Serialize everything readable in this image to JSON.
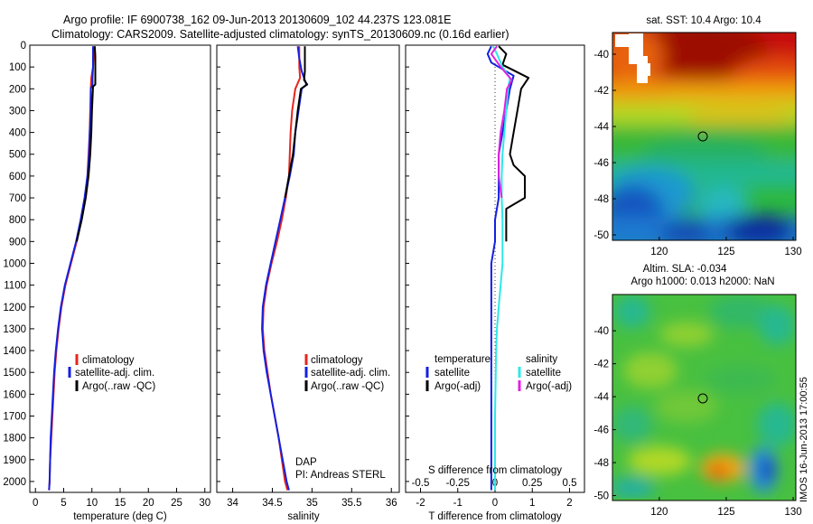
{
  "header": {
    "line1": "Argo profile: IF 6900738_162 09-Jun-2013 20130609_102 44.237S 123.081E",
    "line2": "Climatology: CARS2009. Satellite-adjusted climatology: synTS_20130609.nc (0.16d earlier)"
  },
  "colors": {
    "climatology": "#e8251c",
    "satellite": "#1420e0",
    "argo": "#000000",
    "satellite_s": "#2de8e8",
    "argo_s": "#e020e0"
  },
  "chart_data": [
    {
      "type": "line",
      "id": "temperature",
      "xlabel": "temperature (deg C)",
      "xlim": [
        -1,
        31
      ],
      "ylim": [
        0,
        2050
      ],
      "xticks": [
        0,
        5,
        10,
        15,
        20,
        25,
        30
      ],
      "yticks": [
        0,
        100,
        200,
        300,
        400,
        500,
        600,
        700,
        800,
        900,
        1000,
        1100,
        1200,
        1300,
        1400,
        1500,
        1600,
        1700,
        1800,
        1900,
        2000
      ],
      "y_reversed": true,
      "legend": [
        "climatology",
        "satellite-adj. clim.",
        "Argo(..raw -QC)"
      ],
      "legend_position": "lower-center",
      "series": [
        {
          "name": "climatology",
          "color_key": "climatology",
          "points": [
            [
              10.3,
              5
            ],
            [
              10.3,
              50
            ],
            [
              10.2,
              100
            ],
            [
              9.9,
              150
            ],
            [
              9.8,
              200
            ],
            [
              9.7,
              300
            ],
            [
              9.6,
              400
            ],
            [
              9.4,
              500
            ],
            [
              9.2,
              600
            ],
            [
              8.8,
              700
            ],
            [
              8.1,
              800
            ],
            [
              7.3,
              900
            ],
            [
              6.3,
              1000
            ],
            [
              5.3,
              1100
            ],
            [
              4.6,
              1200
            ],
            [
              4.1,
              1300
            ],
            [
              3.7,
              1400
            ],
            [
              3.4,
              1500
            ],
            [
              3.2,
              1600
            ],
            [
              3.0,
              1700
            ],
            [
              2.8,
              1800
            ],
            [
              2.6,
              1900
            ],
            [
              2.5,
              2000
            ],
            [
              2.4,
              2040
            ]
          ]
        },
        {
          "name": "satellite-adj. clim.",
          "color_key": "satellite",
          "points": [
            [
              10.2,
              5
            ],
            [
              10.2,
              50
            ],
            [
              10.2,
              100
            ],
            [
              10.1,
              150
            ],
            [
              10.1,
              180
            ],
            [
              9.8,
              200
            ],
            [
              9.8,
              300
            ],
            [
              9.6,
              400
            ],
            [
              9.5,
              500
            ],
            [
              9.2,
              600
            ],
            [
              8.7,
              700
            ],
            [
              8.0,
              800
            ],
            [
              7.2,
              900
            ],
            [
              6.2,
              1000
            ],
            [
              5.2,
              1100
            ],
            [
              4.5,
              1200
            ],
            [
              4.0,
              1300
            ],
            [
              3.6,
              1400
            ],
            [
              3.3,
              1500
            ],
            [
              3.1,
              1600
            ],
            [
              2.9,
              1700
            ],
            [
              2.7,
              1800
            ],
            [
              2.6,
              1900
            ],
            [
              2.5,
              2000
            ],
            [
              2.4,
              2040
            ]
          ]
        },
        {
          "name": "Argo(..raw -QC)",
          "color_key": "argo",
          "points": [
            [
              10.5,
              5
            ],
            [
              10.6,
              50
            ],
            [
              10.6,
              100
            ],
            [
              10.6,
              150
            ],
            [
              10.6,
              180
            ],
            [
              10.2,
              190
            ],
            [
              10.0,
              300
            ],
            [
              9.9,
              400
            ],
            [
              9.7,
              500
            ],
            [
              9.4,
              600
            ],
            [
              8.9,
              700
            ],
            [
              8.2,
              800
            ],
            [
              7.3,
              900
            ]
          ]
        }
      ]
    },
    {
      "type": "line",
      "id": "salinity",
      "xlabel": "salinity",
      "xlim": [
        33.8,
        36.1
      ],
      "ylim": [
        0,
        2050
      ],
      "xticks": [
        34,
        34.5,
        35,
        35.5,
        36
      ],
      "y_reversed": true,
      "legend": [
        "climatology",
        "satellite-adj. clim.",
        "Argo(..raw -QC)"
      ],
      "legend_position": "lower-right",
      "annotation": [
        "DAP",
        "PI: Andreas STERL"
      ],
      "series": [
        {
          "name": "climatology",
          "color_key": "climatology",
          "points": [
            [
              34.84,
              5
            ],
            [
              34.84,
              100
            ],
            [
              34.85,
              150
            ],
            [
              34.79,
              200
            ],
            [
              34.75,
              300
            ],
            [
              34.73,
              400
            ],
            [
              34.72,
              500
            ],
            [
              34.71,
              600
            ],
            [
              34.67,
              700
            ],
            [
              34.62,
              800
            ],
            [
              34.56,
              900
            ],
            [
              34.49,
              1000
            ],
            [
              34.43,
              1100
            ],
            [
              34.39,
              1200
            ],
            [
              34.38,
              1300
            ],
            [
              34.4,
              1400
            ],
            [
              34.44,
              1500
            ],
            [
              34.48,
              1600
            ],
            [
              34.53,
              1700
            ],
            [
              34.58,
              1800
            ],
            [
              34.62,
              1900
            ],
            [
              34.66,
              2000
            ],
            [
              34.69,
              2040
            ]
          ]
        },
        {
          "name": "satellite-adj. clim.",
          "color_key": "satellite",
          "points": [
            [
              34.82,
              5
            ],
            [
              34.84,
              60
            ],
            [
              34.87,
              120
            ],
            [
              34.93,
              180
            ],
            [
              34.87,
              200
            ],
            [
              34.83,
              300
            ],
            [
              34.79,
              400
            ],
            [
              34.77,
              500
            ],
            [
              34.72,
              600
            ],
            [
              34.66,
              700
            ],
            [
              34.6,
              800
            ],
            [
              34.54,
              900
            ],
            [
              34.48,
              1000
            ],
            [
              34.42,
              1100
            ],
            [
              34.38,
              1200
            ],
            [
              34.37,
              1300
            ],
            [
              34.39,
              1400
            ],
            [
              34.43,
              1500
            ],
            [
              34.48,
              1600
            ],
            [
              34.53,
              1700
            ],
            [
              34.58,
              1800
            ],
            [
              34.63,
              1900
            ],
            [
              34.68,
              2000
            ],
            [
              34.71,
              2040
            ]
          ]
        },
        {
          "name": "Argo(..raw -QC)",
          "color_key": "argo",
          "points": [
            [
              34.91,
              5
            ],
            [
              34.91,
              120
            ],
            [
              34.9,
              160
            ],
            [
              34.94,
              180
            ],
            [
              34.86,
              200
            ],
            [
              34.82,
              300
            ],
            [
              34.79,
              400
            ],
            [
              34.76,
              500
            ],
            [
              34.71,
              600
            ],
            [
              34.66,
              700
            ]
          ]
        }
      ]
    },
    {
      "type": "line",
      "id": "differences",
      "xlabel": "T difference from climatology",
      "xlabel_top": "S difference from climatology",
      "xlim": [
        -2.4,
        2.4
      ],
      "ylim": [
        0,
        2050
      ],
      "xticks": [
        -2,
        -1,
        0,
        1,
        2
      ],
      "xticks_s": [
        -0.5,
        -0.25,
        0,
        0.25,
        0.5
      ],
      "s_scale_per_t": 0.25,
      "y_reversed": true,
      "legend_left": {
        "title": "temperature",
        "items": [
          "satellite",
          "Argo(-adj)"
        ]
      },
      "legend_right": {
        "title": "salinity",
        "items": [
          "satellite",
          "Argo(-adj)"
        ]
      },
      "series": [
        {
          "name": "satellite T",
          "color_key": "satellite",
          "points": [
            [
              -0.1,
              5
            ],
            [
              -0.2,
              40
            ],
            [
              -0.1,
              80
            ],
            [
              0.5,
              140
            ],
            [
              0.4,
              200
            ],
            [
              0.3,
              300
            ],
            [
              0.2,
              400
            ],
            [
              0.1,
              500
            ],
            [
              0.1,
              600
            ],
            [
              0.1,
              700
            ],
            [
              0.0,
              800
            ],
            [
              0.0,
              900
            ],
            [
              -0.1,
              1000
            ],
            [
              -0.1,
              1100
            ],
            [
              -0.1,
              1200
            ],
            [
              -0.1,
              1300
            ],
            [
              -0.1,
              1400
            ],
            [
              -0.1,
              1500
            ],
            [
              -0.1,
              1600
            ],
            [
              -0.1,
              1700
            ],
            [
              -0.1,
              1800
            ],
            [
              -0.1,
              1900
            ],
            [
              -0.1,
              2000
            ],
            [
              -0.1,
              2040
            ]
          ]
        },
        {
          "name": "Argo T",
          "color_key": "argo",
          "points": [
            [
              0.1,
              5
            ],
            [
              0.3,
              40
            ],
            [
              0.2,
              90
            ],
            [
              0.9,
              150
            ],
            [
              0.7,
              200
            ],
            [
              0.6,
              300
            ],
            [
              0.5,
              400
            ],
            [
              0.4,
              500
            ],
            [
              0.5,
              550
            ],
            [
              0.8,
              600
            ],
            [
              0.8,
              700
            ],
            [
              0.3,
              750
            ],
            [
              0.3,
              800
            ],
            [
              0.3,
              900
            ]
          ]
        },
        {
          "name": "satellite S",
          "color_key": "satellite_s",
          "points": [
            [
              -0.05,
              5
            ],
            [
              0.05,
              40
            ],
            [
              0.2,
              100
            ],
            [
              0.4,
              150
            ],
            [
              0.35,
              200
            ],
            [
              0.3,
              300
            ],
            [
              0.25,
              400
            ],
            [
              0.2,
              500
            ],
            [
              0.18,
              600
            ],
            [
              0.18,
              700
            ],
            [
              0.2,
              800
            ],
            [
              0.2,
              900
            ],
            [
              0.2,
              1000
            ],
            [
              0.15,
              1100
            ],
            [
              0.1,
              1200
            ],
            [
              0.05,
              1300
            ],
            [
              0.03,
              1400
            ],
            [
              0.02,
              1500
            ],
            [
              0.0,
              1700
            ],
            [
              0.0,
              2040
            ]
          ]
        },
        {
          "name": "Argo S",
          "color_key": "argo_s",
          "points": [
            [
              0.05,
              5
            ],
            [
              -0.1,
              40
            ],
            [
              0.15,
              100
            ],
            [
              0.45,
              160
            ],
            [
              0.32,
              200
            ],
            [
              0.25,
              300
            ],
            [
              0.15,
              400
            ],
            [
              0.1,
              500
            ],
            [
              0.1,
              600
            ],
            [
              0.18,
              700
            ]
          ]
        }
      ]
    },
    {
      "type": "heatmap",
      "id": "sst-map",
      "title": "sat. SST: 10.4 Argo: 10.4",
      "xlim": [
        116.5,
        130.2
      ],
      "ylim": [
        -50.3,
        -38.8
      ],
      "xticks": [
        120,
        125,
        130
      ],
      "yticks": [
        -40,
        -42,
        -44,
        -46,
        -48,
        -50
      ],
      "marker": {
        "lon": 123.081,
        "lat": -44.237
      },
      "color_range": [
        "#0a2aa0",
        "#2a9ed8",
        "#1fc0c8",
        "#2fbf3a",
        "#70c935",
        "#c8d820",
        "#f0a010",
        "#e85010",
        "#a80c08"
      ]
    },
    {
      "type": "heatmap",
      "id": "sla-map",
      "title": "Altim. SLA: -0.034",
      "subtitle": "Argo h1000: 0.013 h2000: NaN",
      "xlim": [
        116.5,
        130.2
      ],
      "ylim": [
        -50.3,
        -37.8
      ],
      "xticks": [
        120,
        125,
        130
      ],
      "yticks": [
        -40,
        -42,
        -44,
        -46,
        -48,
        -50
      ],
      "marker": {
        "lon": 123.081,
        "lat": -44.237
      }
    }
  ],
  "footer": {
    "stamp": "IMOS 16-Jun-2013 17:00:55"
  }
}
